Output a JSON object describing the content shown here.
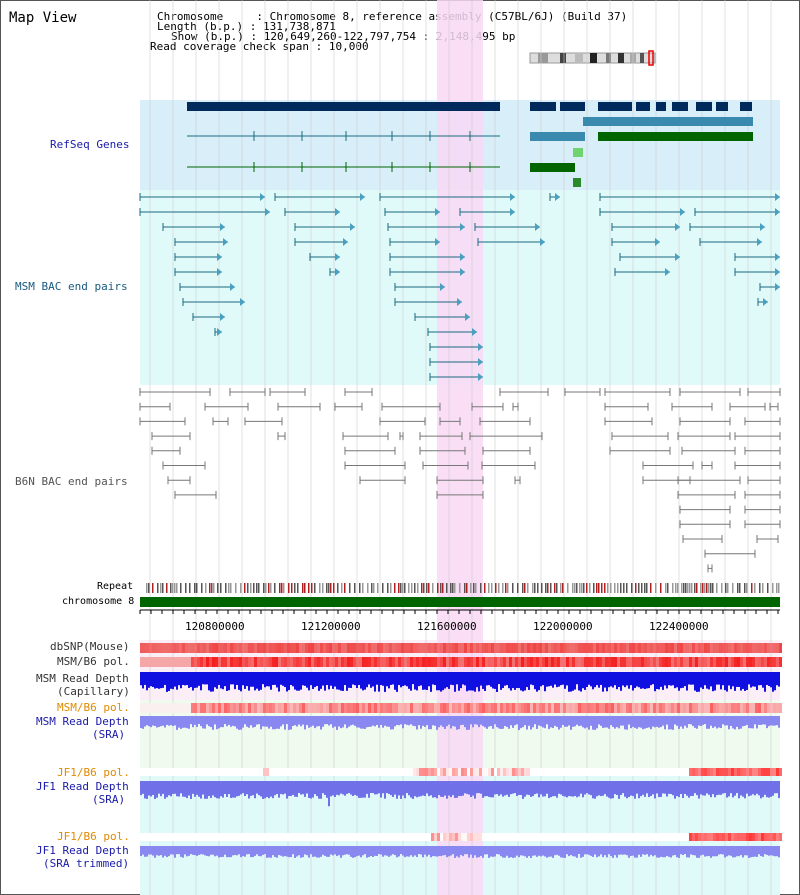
{
  "title": "Map View",
  "header": {
    "chromosome_label": "Chromosome",
    "chromosome_value": "Chromosome 8, reference assembly (C57BL/6J) (Build 37)",
    "length_label": "Length (b.p.)",
    "length_value": "131,738,871",
    "show_label": "Show (b.p.)",
    "show_value": "120,649,260-122,797,754 : 2,148,495 bp",
    "coverage_label": "Read coverage check span",
    "coverage_value": "10,000"
  },
  "tracks": {
    "refseq": "RefSeq Genes",
    "msm_bac": "MSM BAC end pairs",
    "b6n_bac": "B6N BAC end pairs",
    "repeat": "Repeat",
    "chromosome": "chromosome 8",
    "dbsnp": "dbSNP(Mouse)",
    "msm_b6_pol": "MSM/B6 pol.",
    "msm_depth_cap_1": "MSM Read Depth",
    "msm_depth_cap_2": "(Capillary)",
    "msm_b6_pol_2": "MSM/B6 pol.",
    "msm_depth_sra_1": "MSM Read Depth",
    "msm_depth_sra_2": "(SRA)",
    "jf1_b6_pol": "JF1/B6 pol.",
    "jf1_depth_sra_1": "JF1 Read Depth",
    "jf1_depth_sra_2": "(SRA)",
    "jf1_b6_pol_2": "JF1/B6 pol.",
    "jf1_depth_trim_1": "JF1 Read Depth",
    "jf1_depth_trim_2": "(SRA trimmed)"
  },
  "axis": {
    "ticks": [
      "120800000",
      "121200000",
      "121600000",
      "122000000",
      "122400000"
    ]
  },
  "colors": {
    "highlight": "#f8d8f4",
    "refseq_band": "#d8eef8",
    "msm_band": "#e0fafa",
    "chromosome": "#006400",
    "gene_dark": "#002a5c",
    "gene_mid": "#3a8ab0",
    "gene_green": "#006400",
    "msm_pair": "#1a6a80",
    "b6n_pair": "#777777",
    "depth_blue": "#1010e0",
    "depth_light": "#8888f0",
    "pol_red": "#ee2222"
  }
}
